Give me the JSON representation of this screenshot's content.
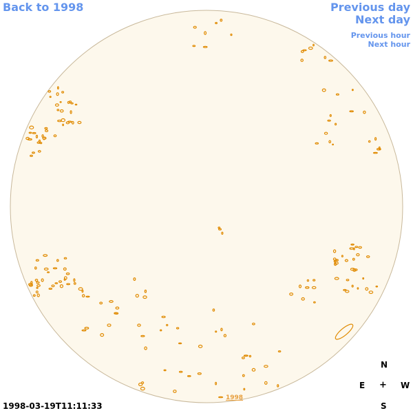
{
  "nav": {
    "back_label": "Back to 1998",
    "previous_day_label": "Previous day",
    "next_day_label": "Next day",
    "previous_hour_label": "Previous hour",
    "next_hour_label": "Next hour"
  },
  "compass": {
    "north": "N",
    "east": "E",
    "center": "+",
    "west": "W",
    "south": "S"
  },
  "timestamp": "1998-03-19T11:11:33",
  "year_label": "1998",
  "colors": {
    "disk_fill": "#fdf8ec",
    "disk_outline": "#c8b89a",
    "contour": "#e08a00",
    "link": "#6495ed"
  }
}
